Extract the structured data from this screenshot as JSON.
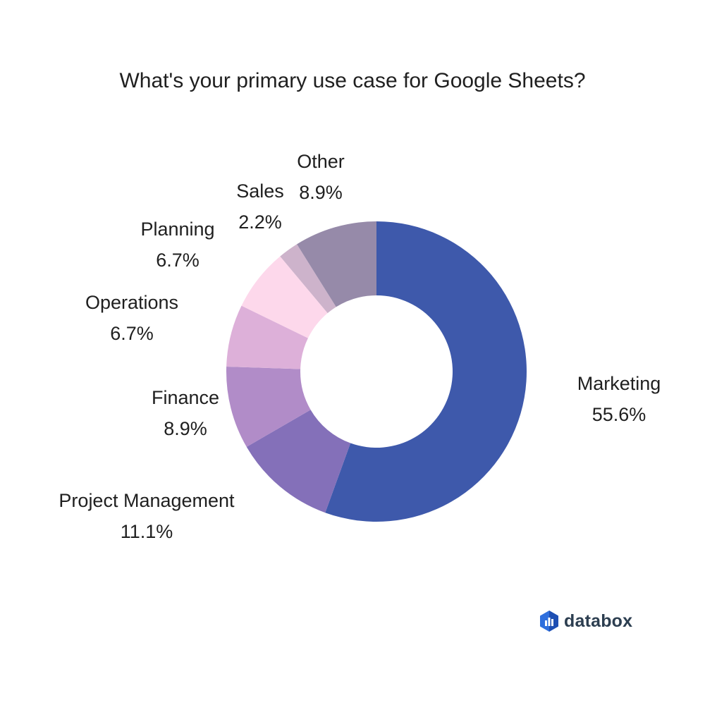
{
  "chart_data": {
    "type": "pie",
    "title": "What's your primary use case for Google Sheets?",
    "donut": true,
    "slices": [
      {
        "label": "Marketing",
        "value": 55.6,
        "display": "55.6%",
        "color": "#3e59ab"
      },
      {
        "label": "Project Management",
        "value": 11.1,
        "display": "11.1%",
        "color": "#8470b9"
      },
      {
        "label": "Finance",
        "value": 8.9,
        "display": "8.9%",
        "color": "#b18cc8"
      },
      {
        "label": "Operations",
        "value": 6.7,
        "display": "6.7%",
        "color": "#ddb0d9"
      },
      {
        "label": "Planning",
        "value": 6.7,
        "display": "6.7%",
        "color": "#fdd8eb"
      },
      {
        "label": "Sales",
        "value": 2.2,
        "display": "2.2%",
        "color": "#cdb3cb"
      },
      {
        "label": "Other",
        "value": 8.9,
        "display": "8.9%",
        "color": "#968aa9"
      }
    ],
    "legend": "none"
  },
  "brand": {
    "name": "databox",
    "icon": "databox-logo-icon",
    "colors": [
      "#2f80ed",
      "#3fa9f5",
      "#1e3a8a"
    ]
  }
}
